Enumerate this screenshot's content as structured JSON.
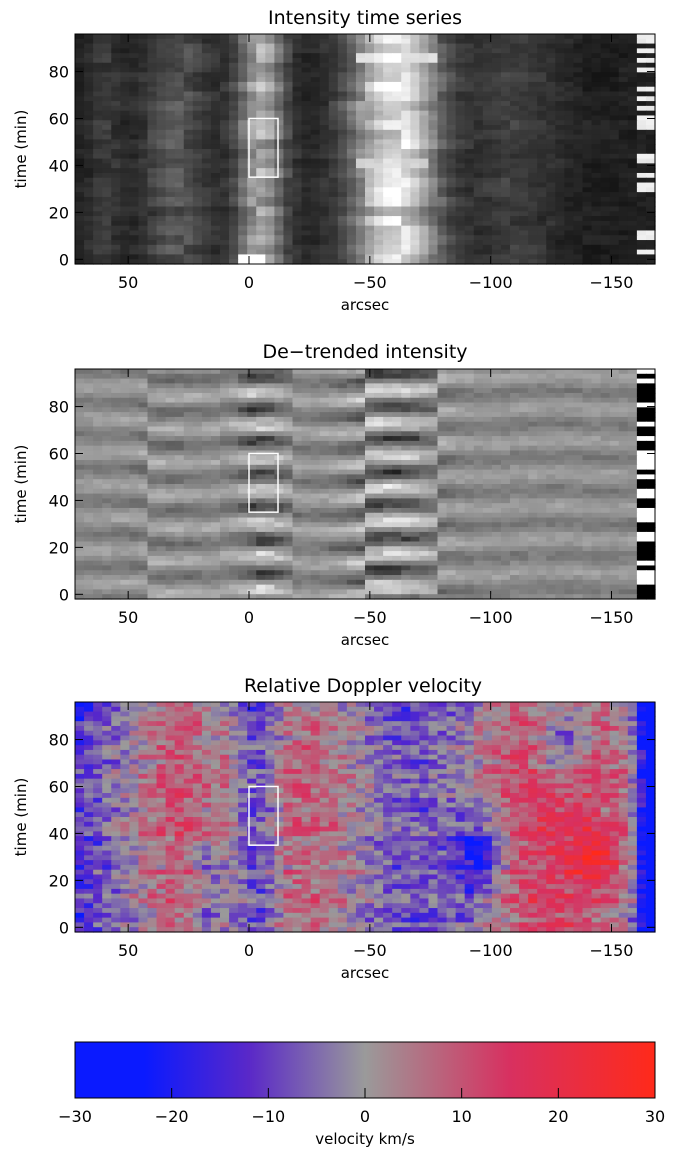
{
  "chart_data": [
    {
      "type": "heatmap",
      "title": "Intensity time series",
      "xlabel": "arcsec",
      "ylabel": "time (min)",
      "xlim": [
        72,
        -168
      ],
      "ylim": [
        -2,
        96
      ],
      "xticks": [
        50,
        0,
        -50,
        -100,
        -150
      ],
      "xtick_labels": [
        "50",
        "0",
        "−50",
        "−100",
        "−150"
      ],
      "yticks": [
        0,
        20,
        40,
        60,
        80
      ],
      "ytick_labels": [
        "0",
        "20",
        "40",
        "60",
        "80"
      ],
      "colormap": "grayscale",
      "box": {
        "x": [
          -12,
          0
        ],
        "y": [
          35,
          60
        ]
      },
      "features": [
        {
          "x": -5,
          "y": 48,
          "width": 14,
          "height": 28,
          "level": 0.85
        },
        {
          "x": -60,
          "y": 60,
          "width": 30,
          "height": 60,
          "level": 0.9
        },
        {
          "x": -62,
          "y": 9,
          "width": 30,
          "height": 6,
          "level": 0.95
        },
        {
          "x": 0,
          "y": 93,
          "width": 8,
          "height": 3,
          "level": 1.0
        }
      ]
    },
    {
      "type": "heatmap",
      "title": "De−trended intensity",
      "xlabel": "arcsec",
      "ylabel": "time (min)",
      "xlim": [
        72,
        -168
      ],
      "ylim": [
        -2,
        96
      ],
      "xticks": [
        50,
        0,
        -50,
        -100,
        -150
      ],
      "xtick_labels": [
        "50",
        "0",
        "−50",
        "−100",
        "−150"
      ],
      "yticks": [
        0,
        20,
        40,
        60,
        80
      ],
      "ytick_labels": [
        "0",
        "20",
        "40",
        "60",
        "80"
      ],
      "colormap": "grayscale",
      "box": {
        "x": [
          -12,
          0
        ],
        "y": [
          35,
          60
        ]
      }
    },
    {
      "type": "heatmap",
      "title": "Relative Doppler velocity",
      "xlabel": "arcsec",
      "ylabel": "time (min)",
      "xlim": [
        72,
        -168
      ],
      "ylim": [
        -2,
        96
      ],
      "xticks": [
        50,
        0,
        -50,
        -100,
        -150
      ],
      "xtick_labels": [
        "50",
        "0",
        "−50",
        "−100",
        "−150"
      ],
      "yticks": [
        0,
        20,
        40,
        60,
        80
      ],
      "ytick_labels": [
        "0",
        "20",
        "40",
        "60",
        "80"
      ],
      "colormap": "blue-gray-red",
      "box": {
        "x": [
          -12,
          0
        ],
        "y": [
          35,
          60
        ]
      }
    }
  ],
  "colorbar": {
    "label": "velocity km/s",
    "range": [
      -30,
      30
    ],
    "ticks": [
      -30,
      -20,
      -10,
      0,
      10,
      20,
      30
    ],
    "tick_labels": [
      "−30",
      "−20",
      "−10",
      "0",
      "10",
      "20",
      "30"
    ],
    "colors": {
      "low": "#0a1aff",
      "mid_low": "#5a28c8",
      "mid": "#9a9a9a",
      "mid_high": "#d83060",
      "high": "#ff2a1a"
    }
  }
}
